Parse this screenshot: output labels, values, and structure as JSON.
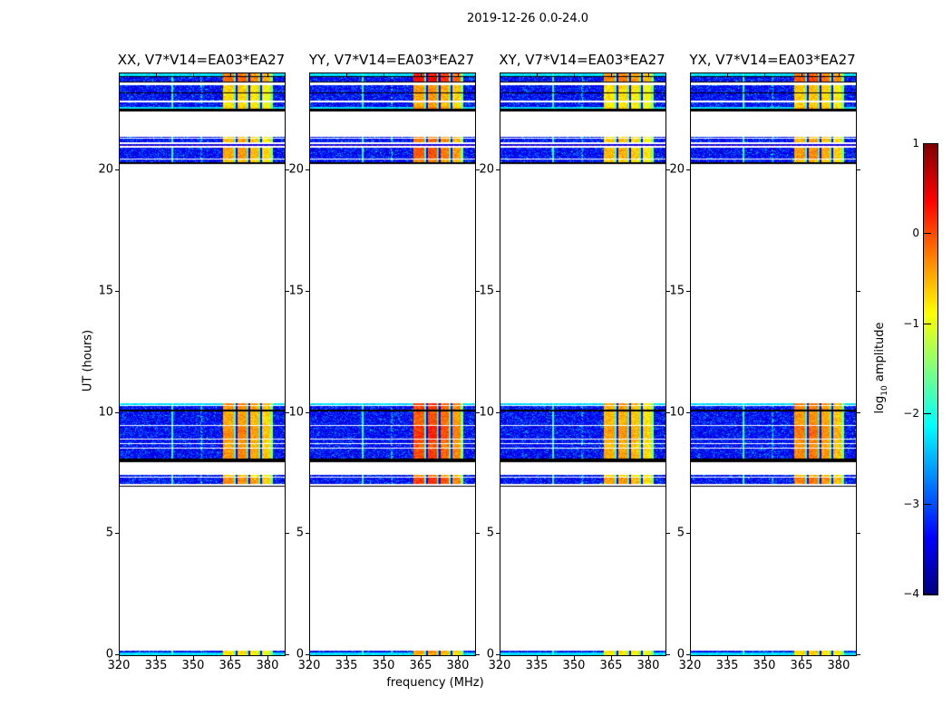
{
  "chart_data": {
    "type": "heatmap",
    "title": "2019-12-26 0.0-24.0",
    "xlabel": "frequency (MHz)",
    "ylabel": "UT (hours)",
    "xlim": [
      320,
      386.6
    ],
    "ylim": [
      0,
      24
    ],
    "xticks": [
      "320",
      "335",
      "350",
      "365",
      "380"
    ],
    "xtick_values": [
      320,
      335,
      350,
      365,
      380
    ],
    "yticks": [
      "0",
      "5",
      "10",
      "15",
      "20"
    ],
    "ytick_values": [
      0,
      5,
      10,
      15,
      20
    ],
    "grid": false,
    "colorbar": {
      "label_prefix": "log",
      "label_sub": "10",
      "label_suffix": " amplitude",
      "ticks": [
        "1",
        "0",
        "−1",
        "−2",
        "−3",
        "−4"
      ],
      "tick_values": [
        1,
        0,
        -1,
        -2,
        -3,
        -4
      ],
      "vmin": -4,
      "vmax": 1,
      "cmap": "jet"
    },
    "panels": [
      {
        "id": "XX",
        "title": "XX, V7*V14=EA03*EA27",
        "heat": 0.85
      },
      {
        "id": "YY",
        "title": "YY, V7*V14=EA03*EA27",
        "heat": 1.15
      },
      {
        "id": "XY",
        "title": "XY, V7*V14=EA03*EA27",
        "heat": 0.78
      },
      {
        "id": "YX",
        "title": "YX, V7*V14=EA03*EA27",
        "heat": 0.92
      }
    ],
    "rfi_band_mhz": [
      361.5,
      381.8
    ],
    "channel_gap_lines_mhz": [
      367,
      372,
      377
    ],
    "faint_vertical_lines_mhz": [
      341,
      352.7
    ],
    "scan_bands": [
      {
        "t0": 22.42,
        "t1": 24.0,
        "rows": [
          {
            "t0": 23.9,
            "t1": 24.0,
            "style": "cyan",
            "heat": 0.85
          },
          {
            "t0": 23.86,
            "t1": 23.9,
            "style": "black"
          },
          {
            "t0": 23.66,
            "t1": 23.86,
            "style": "speckle",
            "heat": 0.92
          },
          {
            "t0": 23.62,
            "t1": 23.66,
            "style": "black"
          },
          {
            "t0": 23.52,
            "t1": 23.62,
            "style": "white"
          },
          {
            "t0": 23.2,
            "t1": 23.52,
            "style": "speckle",
            "heat": 0.58
          },
          {
            "t0": 23.16,
            "t1": 23.2,
            "style": "black"
          },
          {
            "t0": 22.86,
            "t1": 23.16,
            "style": "speckle",
            "heat": 0.55
          },
          {
            "t0": 22.82,
            "t1": 22.86,
            "style": "white"
          },
          {
            "t0": 22.62,
            "t1": 22.82,
            "style": "speckle",
            "heat": 0.52
          },
          {
            "t0": 22.55,
            "t1": 22.62,
            "style": "cyan",
            "heat": 0.62
          },
          {
            "t0": 22.42,
            "t1": 22.55,
            "style": "black"
          }
        ]
      },
      {
        "t0": 20.25,
        "t1": 21.4,
        "rows": [
          {
            "t0": 21.34,
            "t1": 21.4,
            "style": "speckle",
            "heat": 0.6
          },
          {
            "t0": 21.3,
            "t1": 21.34,
            "style": "white"
          },
          {
            "t0": 21.16,
            "t1": 21.3,
            "style": "speckle",
            "heat": 0.66
          },
          {
            "t0": 21.1,
            "t1": 21.16,
            "style": "white"
          },
          {
            "t0": 21.0,
            "t1": 21.1,
            "style": "dots"
          },
          {
            "t0": 20.95,
            "t1": 21.0,
            "style": "white"
          },
          {
            "t0": 20.5,
            "t1": 20.95,
            "style": "speckle",
            "heat": 0.72
          },
          {
            "t0": 20.46,
            "t1": 20.5,
            "style": "white"
          },
          {
            "t0": 20.32,
            "t1": 20.46,
            "style": "speckle",
            "heat": 0.6
          },
          {
            "t0": 20.25,
            "t1": 20.32,
            "style": "black"
          }
        ]
      },
      {
        "t0": 7.95,
        "t1": 10.4,
        "rows": [
          {
            "t0": 10.32,
            "t1": 10.4,
            "style": "cyan",
            "heat": 0.82
          },
          {
            "t0": 10.28,
            "t1": 10.32,
            "style": "white"
          },
          {
            "t0": 10.14,
            "t1": 10.28,
            "style": "speckle",
            "heat": 0.78
          },
          {
            "t0": 10.04,
            "t1": 10.14,
            "style": "black"
          },
          {
            "t0": 9.5,
            "t1": 10.04,
            "style": "speckle",
            "heat": 0.72
          },
          {
            "t0": 9.46,
            "t1": 9.5,
            "style": "white"
          },
          {
            "t0": 8.95,
            "t1": 9.46,
            "style": "speckle",
            "heat": 0.82
          },
          {
            "t0": 8.91,
            "t1": 8.95,
            "style": "white"
          },
          {
            "t0": 8.76,
            "t1": 8.91,
            "style": "speckle",
            "heat": 0.76
          },
          {
            "t0": 8.72,
            "t1": 8.76,
            "style": "white"
          },
          {
            "t0": 8.55,
            "t1": 8.72,
            "style": "speckle",
            "heat": 0.7
          },
          {
            "t0": 8.51,
            "t1": 8.55,
            "style": "white"
          },
          {
            "t0": 8.1,
            "t1": 8.51,
            "style": "speckle",
            "heat": 0.78
          },
          {
            "t0": 7.95,
            "t1": 8.1,
            "style": "black"
          }
        ]
      },
      {
        "t0": 6.95,
        "t1": 7.45,
        "rows": [
          {
            "t0": 7.38,
            "t1": 7.45,
            "style": "speckle",
            "heat": 0.6
          },
          {
            "t0": 7.34,
            "t1": 7.38,
            "style": "white"
          },
          {
            "t0": 7.06,
            "t1": 7.34,
            "style": "speckle",
            "heat": 0.8
          },
          {
            "t0": 7.0,
            "t1": 7.06,
            "style": "white"
          },
          {
            "t0": 6.95,
            "t1": 7.0,
            "style": "black"
          }
        ]
      },
      {
        "t0": 0.0,
        "t1": 0.18,
        "rows": [
          {
            "t0": 0.1,
            "t1": 0.18,
            "style": "speckle",
            "heat": 0.55
          },
          {
            "t0": 0.0,
            "t1": 0.1,
            "style": "cyan",
            "heat": 0.5
          }
        ]
      }
    ]
  }
}
